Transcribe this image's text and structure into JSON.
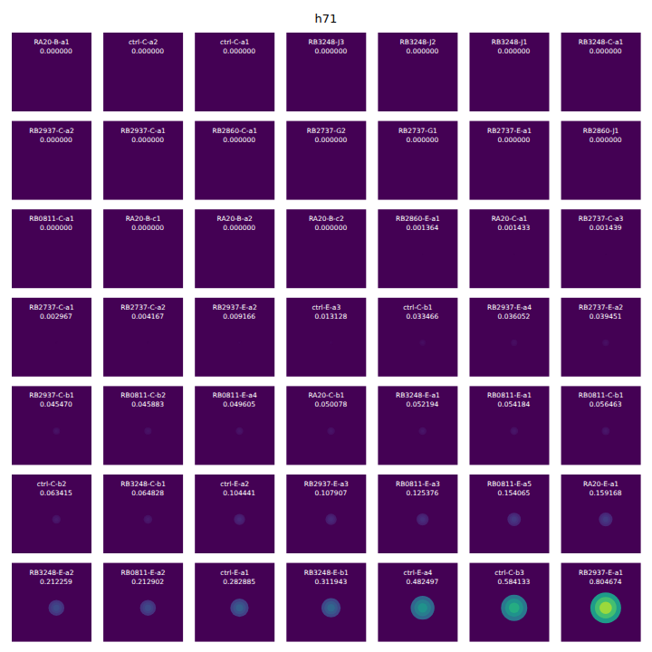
{
  "chart_data": {
    "type": "image_grid",
    "title": "h71",
    "color": "#440154",
    "categories": [
      "RA20-B-a1",
      "ctrl-C-a2",
      "ctrl-C-a1",
      "RB3248-J3",
      "RB3248-J2",
      "RB3248-J1",
      "RB3248-C-a1",
      "RB2937-C-a2",
      "RB2937-C-a1",
      "RB2860-C-a1",
      "RB2737-G2",
      "RB2737-G1",
      "RB2737-E-a1",
      "RB2860-J1",
      "RB0811-C-a1",
      "RA20-B-c1",
      "RA20-B-a2",
      "RA20-B-c2",
      "RB2860-E-a1",
      "RA20-C-a1",
      "RB2737-C-a3",
      "RB2737-C-a1",
      "RB2737-C-a2",
      "RB2937-E-a2",
      "ctrl-E-a3",
      "ctrl-C-b1",
      "RB2937-E-a4",
      "RB2737-E-a2",
      "RB2937-C-b1",
      "RB0811-C-b2",
      "RB0811-E-a4",
      "RA20-C-b1",
      "RB3248-E-a1",
      "RB0811-E-a1",
      "RB0811-C-b1",
      "ctrl-C-b2",
      "RB3248-C-b1",
      "ctrl-E-a2",
      "RB2937-E-a3",
      "RB0811-E-a3",
      "RB0811-E-a5",
      "RA20-E-a1",
      "RB3248-E-a2",
      "RB0811-E-a2",
      "ctrl-E-a1",
      "RB3248-E-b1",
      "ctrl-E-a4",
      "ctrl-C-b3",
      "RB2937-E-a1"
    ],
    "values": [
      0,
      0,
      0,
      0,
      0,
      0,
      0,
      0,
      0,
      0,
      0,
      0,
      0,
      0,
      0,
      0,
      0,
      0,
      0.001364,
      0.001433,
      0.001439,
      0.002967,
      0.004167,
      0.009166,
      0.013128,
      0.033466,
      0.036052,
      0.039451,
      0.04547,
      0.045883,
      0.049605,
      0.050078,
      0.052194,
      0.054184,
      0.056463,
      0.063415,
      0.064828,
      0.104441,
      0.107907,
      0.125376,
      0.154065,
      0.159168,
      0.212259,
      0.212902,
      0.282885,
      0.311943,
      0.482497,
      0.584133,
      0.804674
    ],
    "value_labels": [
      "0.000000",
      "0.000000",
      "0.000000",
      "0.000000",
      "0.000000",
      "0.000000",
      "0.000000",
      "0.000000",
      "0.000000",
      "0.000000",
      "0.000000",
      "0.000000",
      "0.000000",
      "0.000000",
      "0.000000",
      "0.000000",
      "0.000000",
      "0.000000",
      "0.001364",
      "0.001433",
      "0.001439",
      "0.002967",
      "0.004167",
      "0.009166",
      "0.013128",
      "0.033466",
      "0.036052",
      "0.039451",
      "0.045470",
      "0.045883",
      "0.049605",
      "0.050078",
      "0.052194",
      "0.054184",
      "0.056463",
      "0.063415",
      "0.064828",
      "0.104441",
      "0.107907",
      "0.125376",
      "0.154065",
      "0.159168",
      "0.212259",
      "0.212902",
      "0.282885",
      "0.311943",
      "0.482497",
      "0.584133",
      "0.804674"
    ]
  }
}
